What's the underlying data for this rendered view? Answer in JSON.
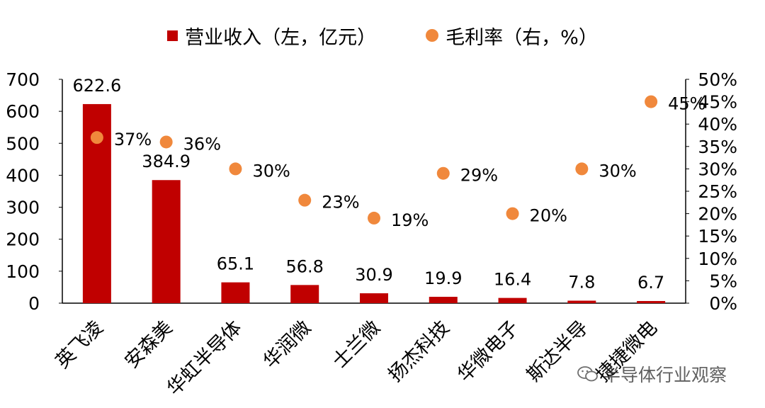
{
  "legend": {
    "revenue_label": "营业收入（左，亿元）",
    "margin_label": "毛利率（右，%）"
  },
  "colors": {
    "bar": "#c00000",
    "dot": "#f0883c",
    "axis": "#000000"
  },
  "watermark": {
    "text": "半导体行业观察",
    "icon": "wechat-icon"
  },
  "chart_data": {
    "type": "bar+scatter",
    "categories": [
      "英飞凌",
      "安森美",
      "华虹半导体",
      "华润微",
      "士兰微",
      "扬杰科技",
      "华微电子",
      "斯达半导",
      "捷捷微电"
    ],
    "series": [
      {
        "name": "营业收入（左，亿元）",
        "type": "bar",
        "axis": "left",
        "values": [
          622.6,
          384.9,
          65.1,
          56.8,
          30.9,
          19.9,
          16.4,
          7.8,
          6.7
        ],
        "labels": [
          "622.6",
          "384.9",
          "65.1",
          "56.8",
          "30.9",
          "19.9",
          "16.4",
          "7.8",
          "6.7"
        ]
      },
      {
        "name": "毛利率（右，%）",
        "type": "scatter",
        "axis": "right",
        "values": [
          37,
          36,
          30,
          23,
          19,
          29,
          20,
          30,
          45
        ],
        "labels": [
          "37%",
          "36%",
          "30%",
          "23%",
          "19%",
          "29%",
          "20%",
          "30%",
          "45%"
        ]
      }
    ],
    "y_left": {
      "lim": [
        0,
        700
      ],
      "ticks": [
        0,
        100,
        200,
        300,
        400,
        500,
        600,
        700
      ],
      "tick_labels": [
        "0",
        "100",
        "200",
        "300",
        "400",
        "500",
        "600",
        "700"
      ]
    },
    "y_right": {
      "lim": [
        0,
        50
      ],
      "ticks": [
        0,
        5,
        10,
        15,
        20,
        25,
        30,
        35,
        40,
        45,
        50
      ],
      "tick_labels": [
        "0%",
        "5%",
        "10%",
        "15%",
        "20%",
        "25%",
        "30%",
        "35%",
        "40%",
        "45%",
        "50%"
      ]
    },
    "grid": false,
    "legend_position": "top-center"
  }
}
